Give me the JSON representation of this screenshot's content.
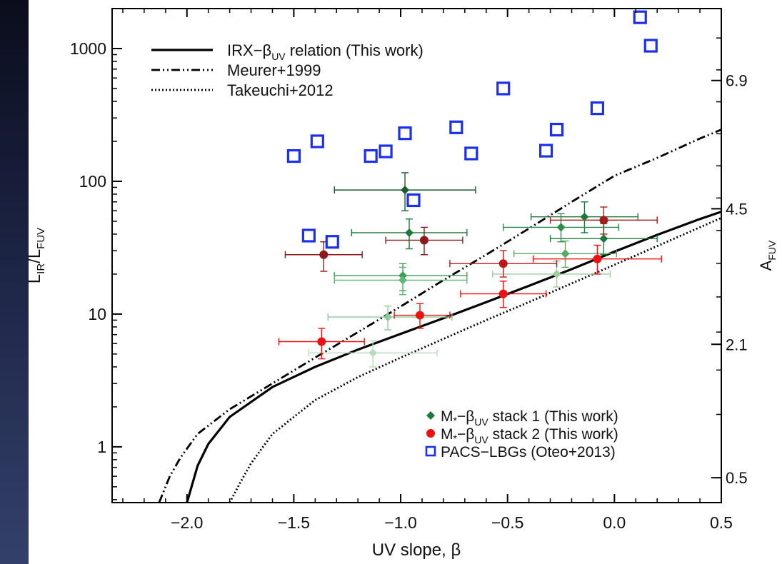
{
  "chart_data": {
    "type": "scatter",
    "xlabel": "UV slope, β",
    "ylabel": "L_IR/L_FUV",
    "ylabel_main": "L",
    "ylabel_sub1": "IR",
    "ylabel_mid": "/L",
    "ylabel_sub2": "FUV",
    "y2label_main": "A",
    "y2label_sub": "FUV",
    "x_axis": {
      "min": -2.35,
      "max": 0.5,
      "ticks": [
        {
          "value": -2.0,
          "label": "−2.0"
        },
        {
          "value": -1.5,
          "label": "−1.5"
        },
        {
          "value": -1.0,
          "label": "−1.0"
        },
        {
          "value": -0.5,
          "label": "−0.5"
        },
        {
          "value": 0.0,
          "label": "0.0"
        },
        {
          "value": 0.5,
          "label": "0.5"
        }
      ]
    },
    "y_axis": {
      "scale": "log",
      "min": 0.38,
      "max": 2000,
      "ticks": [
        {
          "value": 1,
          "label": "1"
        },
        {
          "value": 10,
          "label": "10"
        },
        {
          "value": 100,
          "label": "100"
        },
        {
          "value": 1000,
          "label": "1000"
        }
      ]
    },
    "y2_axis": {
      "ticks": [
        {
          "value": 0.5,
          "label": "0.5"
        },
        {
          "value": 2.1,
          "label": "2.1"
        },
        {
          "value": 4.5,
          "label": "4.5"
        },
        {
          "value": 6.9,
          "label": "6.9"
        }
      ]
    },
    "legend_top": [
      {
        "label_main": "IRX−β",
        "label_sub": "UV",
        "label_rest": " relation (This work)",
        "style": "solid"
      },
      {
        "label_main": "Meurer+1999",
        "label_sub": "",
        "label_rest": "",
        "style": "dashdotdot"
      },
      {
        "label_main": "Takeuchi+2012",
        "label_sub": "",
        "label_rest": "",
        "style": "dotted"
      }
    ],
    "legend_bottom": [
      {
        "label_main": "M",
        "label_star": "*",
        "label_dash": "−β",
        "label_sub": "UV",
        "label_rest": " stack 1 (This work)",
        "marker": "diamond",
        "color": "#1e7a3c"
      },
      {
        "label_main": "M",
        "label_star": "*",
        "label_dash": "−β",
        "label_sub": "UV",
        "label_rest": " stack 2 (This work)",
        "marker": "circle",
        "color": "#ee1111"
      },
      {
        "label_main": "PACS−LBGs (Oteo+2013)",
        "label_star": "",
        "label_dash": "",
        "label_sub": "",
        "label_rest": "",
        "marker": "square",
        "color": "#1a2ff0"
      }
    ],
    "curves": [
      {
        "name": "IRX−βUV relation (This work)",
        "style": "solid",
        "points": [
          [
            -2.0,
            0.38
          ],
          [
            -1.95,
            0.72
          ],
          [
            -1.9,
            1.05
          ],
          [
            -1.8,
            1.68
          ],
          [
            -1.6,
            2.82
          ],
          [
            -1.4,
            4.0
          ],
          [
            -1.2,
            5.4
          ],
          [
            -1.0,
            7.1
          ],
          [
            -0.8,
            9.3
          ],
          [
            -0.6,
            12.3
          ],
          [
            -0.4,
            16.3
          ],
          [
            -0.2,
            21.8
          ],
          [
            0.0,
            29.5
          ],
          [
            0.2,
            39.5
          ],
          [
            0.4,
            52.0
          ],
          [
            0.5,
            59.0
          ]
        ]
      },
      {
        "name": "Meurer+1999",
        "style": "dashdotdot",
        "points": [
          [
            -2.13,
            0.38
          ],
          [
            -2.08,
            0.6
          ],
          [
            -2.03,
            0.83
          ],
          [
            -1.95,
            1.25
          ],
          [
            -1.8,
            1.92
          ],
          [
            -1.6,
            3.0
          ],
          [
            -1.4,
            4.7
          ],
          [
            -1.2,
            7.3
          ],
          [
            -1.0,
            11.4
          ],
          [
            -0.8,
            18.0
          ],
          [
            -0.6,
            28.0
          ],
          [
            -0.4,
            44.0
          ],
          [
            -0.2,
            70.0
          ],
          [
            0.0,
            110.0
          ],
          [
            0.2,
            150.0
          ],
          [
            0.4,
            210.0
          ],
          [
            0.5,
            245.0
          ]
        ]
      },
      {
        "name": "Takeuchi+2012",
        "style": "dotted",
        "points": [
          [
            -1.8,
            0.38
          ],
          [
            -1.75,
            0.54
          ],
          [
            -1.7,
            0.75
          ],
          [
            -1.6,
            1.25
          ],
          [
            -1.4,
            2.25
          ],
          [
            -1.2,
            3.35
          ],
          [
            -1.0,
            4.7
          ],
          [
            -0.8,
            6.5
          ],
          [
            -0.6,
            9.0
          ],
          [
            -0.4,
            12.3
          ],
          [
            -0.2,
            17.0
          ],
          [
            0.0,
            23.5
          ],
          [
            0.2,
            32.5
          ],
          [
            0.4,
            45.0
          ],
          [
            0.5,
            53.0
          ]
        ]
      }
    ],
    "series": [
      {
        "name": "M*−βUV stack 1 (This work)",
        "marker": "diamond",
        "points": [
          {
            "x": -0.98,
            "y": 86,
            "xerr": [
              0.33,
              0.33
            ],
            "yerr": [
              26,
              30
            ],
            "color": "#1a5c2e"
          },
          {
            "x": -0.96,
            "y": 41,
            "xerr": [
              0.27,
              0.27
            ],
            "yerr": [
              10,
              11
            ],
            "color": "#1e7a3c"
          },
          {
            "x": -0.99,
            "y": 19.5,
            "xerr": [
              0.32,
              0.3
            ],
            "yerr": [
              4.5,
              4.5
            ],
            "color": "#3c9e58"
          },
          {
            "x": -0.99,
            "y": 18,
            "xerr": [
              0.32,
              0.3
            ],
            "yerr": [
              4,
              4.5
            ],
            "color": "#5fb574"
          },
          {
            "x": -1.06,
            "y": 9.5,
            "xerr": [
              0.28,
              0.3
            ],
            "yerr": [
              1.9,
              2.0
            ],
            "color": "#8cc995"
          },
          {
            "x": -1.13,
            "y": 5.1,
            "xerr": [
              0.3,
              0.3
            ],
            "yerr": [
              1.1,
              1.2
            ],
            "color": "#b8ddb8"
          },
          {
            "x": -0.05,
            "y": 37,
            "xerr": [
              0.25,
              0.25
            ],
            "yerr": [
              9,
              11
            ],
            "color": "#1e7a3c"
          },
          {
            "x": -0.14,
            "y": 54,
            "xerr": [
              0.25,
              0.25
            ],
            "yerr": [
              13,
              16
            ],
            "color": "#1e7a3c"
          },
          {
            "x": -0.25,
            "y": 45,
            "xerr": [
              0.27,
              0.27
            ],
            "yerr": [
              10,
              12
            ],
            "color": "#2e8b48"
          },
          {
            "x": -0.23,
            "y": 28.5,
            "xerr": [
              0.24,
              0.24
            ],
            "yerr": [
              6,
              7
            ],
            "color": "#55aa66"
          },
          {
            "x": -0.27,
            "y": 20,
            "xerr": [
              0.3,
              0.25
            ],
            "yerr": [
              4,
              5
            ],
            "color": "#9ccf9c"
          }
        ]
      },
      {
        "name": "M*−βUV stack 2 (This work)",
        "marker": "circle",
        "points": [
          {
            "x": -1.36,
            "y": 28,
            "xerr": [
              0.18,
              0.18
            ],
            "yerr": [
              7,
              7
            ],
            "color": "#8b1a1a"
          },
          {
            "x": -0.89,
            "y": 36,
            "xerr": [
              0.18,
              0.18
            ],
            "yerr": [
              8,
              9
            ],
            "color": "#8b1a1a"
          },
          {
            "x": -0.05,
            "y": 51,
            "xerr": [
              0.25,
              0.25
            ],
            "yerr": [
              11,
              13
            ],
            "color": "#a21c1c"
          },
          {
            "x": -0.52,
            "y": 24,
            "xerr": [
              0.25,
              0.25
            ],
            "yerr": [
              5,
              6
            ],
            "color": "#c01818"
          },
          {
            "x": -0.08,
            "y": 26,
            "xerr": [
              0.3,
              0.3
            ],
            "yerr": [
              6,
              7
            ],
            "color": "#ee1111"
          },
          {
            "x": -0.52,
            "y": 14.2,
            "xerr": [
              0.2,
              0.2
            ],
            "yerr": [
              3,
              3.5
            ],
            "color": "#ee1111"
          },
          {
            "x": -0.91,
            "y": 9.8,
            "xerr": [
              0.12,
              0.14
            ],
            "yerr": [
              2.0,
              2.2
            ],
            "color": "#ee1111"
          },
          {
            "x": -1.37,
            "y": 6.2,
            "xerr": [
              0.2,
              0.2
            ],
            "yerr": [
              1.6,
              1.6
            ],
            "color": "#ee1111"
          }
        ]
      },
      {
        "name": "PACS−LBGs (Oteo+2013)",
        "marker": "square",
        "points": [
          {
            "x": -1.5,
            "y": 155
          },
          {
            "x": -1.39,
            "y": 200
          },
          {
            "x": -1.14,
            "y": 155
          },
          {
            "x": -1.07,
            "y": 168
          },
          {
            "x": -0.98,
            "y": 230
          },
          {
            "x": -0.94,
            "y": 72
          },
          {
            "x": -0.74,
            "y": 255
          },
          {
            "x": -0.67,
            "y": 162
          },
          {
            "x": -0.52,
            "y": 500
          },
          {
            "x": -0.32,
            "y": 170
          },
          {
            "x": -0.27,
            "y": 245
          },
          {
            "x": -0.08,
            "y": 355
          },
          {
            "x": 0.12,
            "y": 1720
          },
          {
            "x": 0.17,
            "y": 1050
          },
          {
            "x": -1.43,
            "y": 39
          },
          {
            "x": -1.32,
            "y": 35
          }
        ]
      }
    ]
  }
}
